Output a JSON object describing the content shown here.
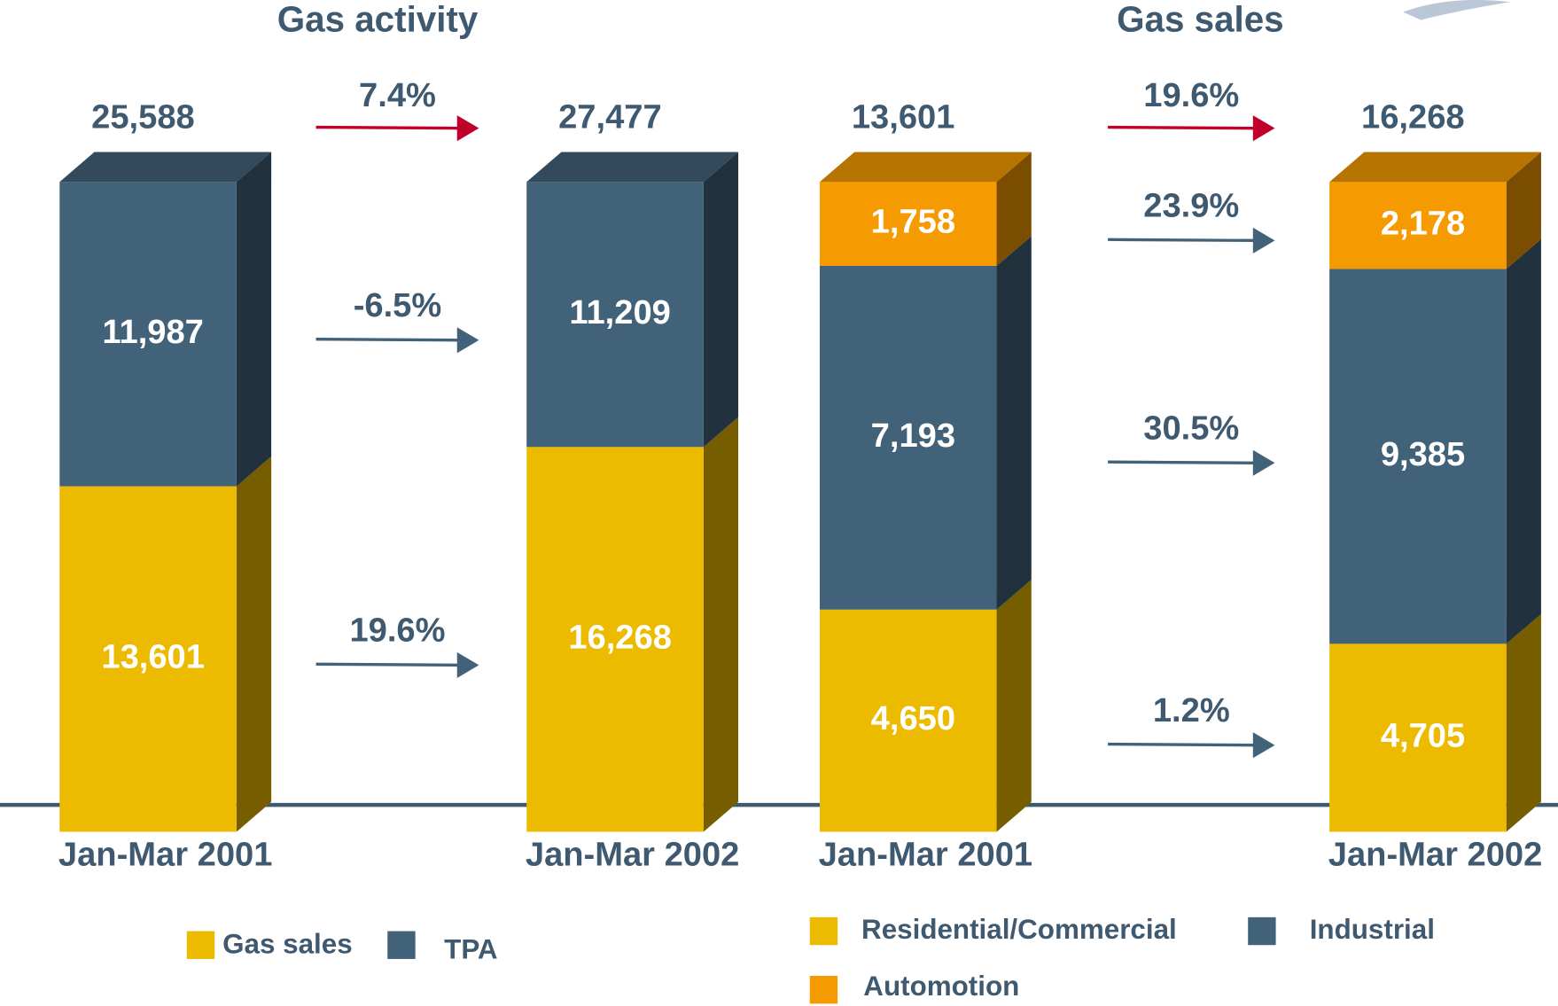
{
  "chart_data": [
    {
      "type": "bar",
      "stacked": true,
      "title": "Gas activity",
      "categories": [
        "Jan-Mar 2001",
        "Jan-Mar 2002"
      ],
      "series": [
        {
          "name": "Gas sales",
          "color": "#ecbb00",
          "values": [
            13601,
            16268
          ],
          "value_labels": [
            "13,601",
            "16,268"
          ],
          "change": "19.6%"
        },
        {
          "name": "TPA",
          "color": "#42627a",
          "values": [
            11987,
            11209
          ],
          "value_labels": [
            "11,987",
            "11,209"
          ],
          "change": "-6.5%"
        }
      ],
      "totals": [
        25588,
        27477
      ],
      "total_labels": [
        "25,588",
        "27,477"
      ],
      "total_change": "7.4%"
    },
    {
      "type": "bar",
      "stacked": true,
      "title": "Gas sales",
      "categories": [
        "Jan-Mar 2001",
        "Jan-Mar 2002"
      ],
      "series": [
        {
          "name": "Residential/Commercial",
          "color": "#ecbb00",
          "values": [
            4650,
            4705
          ],
          "value_labels": [
            "4,650",
            "4,705"
          ],
          "change": "1.2%"
        },
        {
          "name": "Industrial",
          "color": "#42627a",
          "values": [
            7193,
            9385
          ],
          "value_labels": [
            "7,193",
            "9,385"
          ],
          "change": "30.5%"
        },
        {
          "name": "Automotion",
          "color": "#f59a00",
          "values": [
            1758,
            2178
          ],
          "value_labels": [
            "1,758",
            "2,178"
          ],
          "change": "23.9%"
        }
      ],
      "totals": [
        13601,
        16268
      ],
      "total_labels": [
        "13,601",
        "16,268"
      ],
      "total_change": "19.6%"
    }
  ]
}
